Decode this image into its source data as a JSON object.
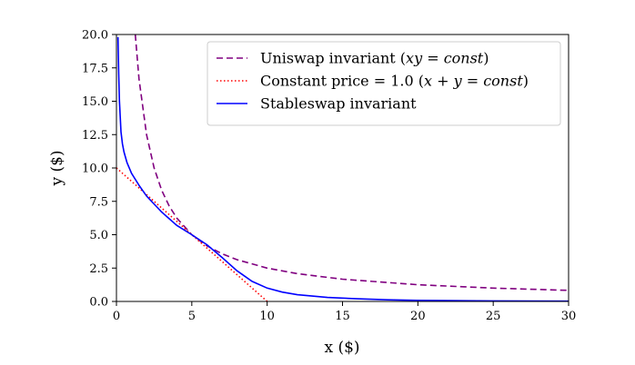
{
  "chart_data": {
    "type": "line",
    "xlabel": "x ($)",
    "ylabel": "y ($)",
    "xlim": [
      0,
      30
    ],
    "ylim": [
      0,
      20
    ],
    "x_ticks": [
      "0",
      "5",
      "10",
      "15",
      "20",
      "25",
      "30"
    ],
    "y_ticks": [
      "0.0",
      "2.5",
      "5.0",
      "7.5",
      "10.0",
      "12.5",
      "15.0",
      "17.5",
      "20.0"
    ],
    "grid": false,
    "legend_position": "top-right",
    "series": [
      {
        "name": "Uniswap invariant (xy = const)",
        "legend_parts": [
          {
            "text": "Uniswap invariant (",
            "italic": false
          },
          {
            "text": "xy",
            "italic": true
          },
          {
            "text": " = ",
            "italic": false
          },
          {
            "text": "const",
            "italic": true
          },
          {
            "text": ")",
            "italic": false
          }
        ],
        "color": "#800080",
        "style": "dashed",
        "x": [
          1.25,
          1.5,
          2,
          2.5,
          3,
          3.5,
          4,
          5,
          6,
          7,
          8,
          10,
          12,
          15,
          20,
          25,
          30
        ],
        "y": [
          20,
          16.67,
          12.5,
          10,
          8.33,
          7.14,
          6.25,
          5,
          4.17,
          3.57,
          3.13,
          2.5,
          2.08,
          1.67,
          1.25,
          1,
          0.83
        ]
      },
      {
        "name": "Constant price = 1.0 (x + y = const)",
        "legend_parts": [
          {
            "text": "Constant price = 1.0 (",
            "italic": false
          },
          {
            "text": "x",
            "italic": true
          },
          {
            "text": " + ",
            "italic": false
          },
          {
            "text": "y",
            "italic": true
          },
          {
            "text": " = ",
            "italic": false
          },
          {
            "text": "const",
            "italic": true
          },
          {
            "text": ")",
            "italic": false
          }
        ],
        "color": "#ff0000",
        "style": "dotted",
        "x": [
          0,
          10
        ],
        "y": [
          10,
          0
        ]
      },
      {
        "name": "Stableswap invariant",
        "legend_parts": [
          {
            "text": "Stableswap invariant",
            "italic": false
          }
        ],
        "color": "#0000ff",
        "style": "solid",
        "x": [
          0.1,
          0.15,
          0.2,
          0.3,
          0.4,
          0.5,
          0.7,
          1,
          1.5,
          2,
          3,
          4,
          5,
          6,
          7,
          8,
          9,
          10,
          11,
          12,
          14,
          16,
          18,
          20,
          25,
          30
        ],
        "y": [
          19.8,
          17,
          15,
          12.7,
          11.8,
          11.2,
          10.4,
          9.6,
          8.7,
          7.9,
          6.7,
          5.7,
          5.0,
          4.25,
          3.3,
          2.3,
          1.5,
          1.0,
          0.7,
          0.5,
          0.3,
          0.2,
          0.12,
          0.08,
          0.04,
          0.02
        ]
      }
    ]
  }
}
